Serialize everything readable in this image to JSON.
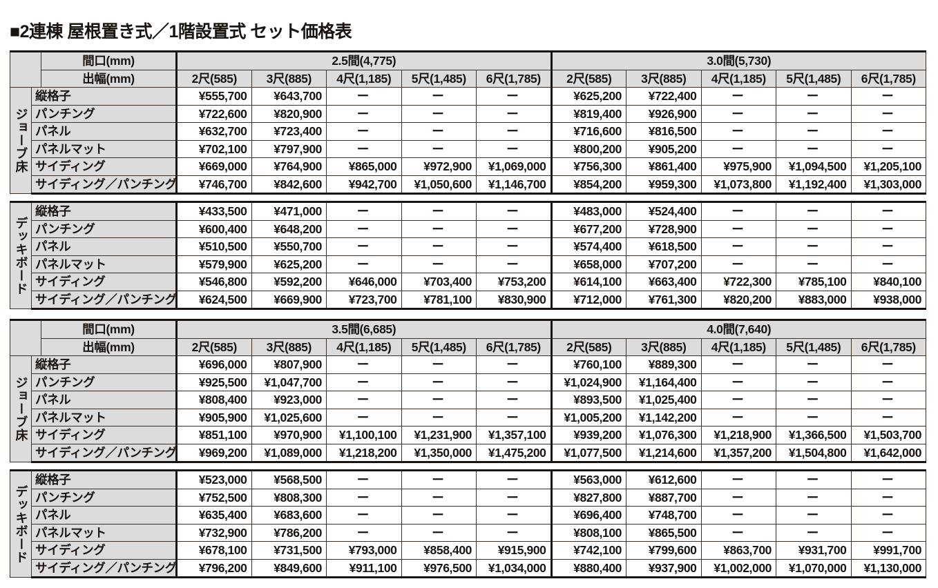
{
  "title": "■2連棟 屋根置き式／1階設置式 セット価格表",
  "header_labels": {
    "frontage": "間口(mm)",
    "projection": "出幅(mm)"
  },
  "projection_columns": [
    "2尺(585)",
    "3尺(885)",
    "4尺(1,185)",
    "5尺(1,485)",
    "6尺(1,785)"
  ],
  "row_labels": [
    "縦格子",
    "パンチング",
    "パネル",
    "パネルマット",
    "サイディング",
    "サイディング／パンチング"
  ],
  "tables": [
    {
      "frontages": [
        "2.5間(4,775)",
        "3.0間(5,730)"
      ],
      "groups": [
        {
          "name": "ジョーブ床",
          "rows": [
            [
              "¥555,700",
              "¥643,700",
              "ー",
              "ー",
              "ー",
              "¥625,200",
              "¥722,400",
              "ー",
              "ー",
              "ー"
            ],
            [
              "¥722,600",
              "¥820,900",
              "ー",
              "ー",
              "ー",
              "¥819,400",
              "¥926,900",
              "ー",
              "ー",
              "ー"
            ],
            [
              "¥632,700",
              "¥723,400",
              "ー",
              "ー",
              "ー",
              "¥716,600",
              "¥816,500",
              "ー",
              "ー",
              "ー"
            ],
            [
              "¥702,100",
              "¥797,900",
              "ー",
              "ー",
              "ー",
              "¥800,200",
              "¥905,200",
              "ー",
              "ー",
              "ー"
            ],
            [
              "¥669,000",
              "¥764,900",
              "¥865,000",
              "¥972,900",
              "¥1,069,000",
              "¥756,300",
              "¥861,400",
              "¥975,900",
              "¥1,094,500",
              "¥1,205,100"
            ],
            [
              "¥746,700",
              "¥842,600",
              "¥942,700",
              "¥1,050,600",
              "¥1,146,700",
              "¥854,200",
              "¥959,300",
              "¥1,073,800",
              "¥1,192,400",
              "¥1,303,000"
            ]
          ]
        },
        {
          "name": "デッキボード",
          "rows": [
            [
              "¥433,500",
              "¥471,000",
              "ー",
              "ー",
              "ー",
              "¥483,000",
              "¥524,400",
              "ー",
              "ー",
              "ー"
            ],
            [
              "¥600,400",
              "¥648,200",
              "ー",
              "ー",
              "ー",
              "¥677,200",
              "¥728,900",
              "ー",
              "ー",
              "ー"
            ],
            [
              "¥510,500",
              "¥550,700",
              "ー",
              "ー",
              "ー",
              "¥574,400",
              "¥618,500",
              "ー",
              "ー",
              "ー"
            ],
            [
              "¥579,900",
              "¥625,200",
              "ー",
              "ー",
              "ー",
              "¥658,000",
              "¥707,200",
              "ー",
              "ー",
              "ー"
            ],
            [
              "¥546,800",
              "¥592,200",
              "¥646,000",
              "¥703,400",
              "¥753,200",
              "¥614,100",
              "¥663,400",
              "¥722,300",
              "¥785,100",
              "¥840,100"
            ],
            [
              "¥624,500",
              "¥669,900",
              "¥723,700",
              "¥781,100",
              "¥830,900",
              "¥712,000",
              "¥761,300",
              "¥820,200",
              "¥883,000",
              "¥938,000"
            ]
          ]
        }
      ]
    },
    {
      "frontages": [
        "3.5間(6,685)",
        "4.0間(7,640)"
      ],
      "groups": [
        {
          "name": "ジョーブ床",
          "rows": [
            [
              "¥696,000",
              "¥807,900",
              "ー",
              "ー",
              "ー",
              "¥760,100",
              "¥889,300",
              "ー",
              "ー",
              "ー"
            ],
            [
              "¥925,500",
              "¥1,047,700",
              "ー",
              "ー",
              "ー",
              "¥1,024,900",
              "¥1,164,400",
              "ー",
              "ー",
              "ー"
            ],
            [
              "¥808,400",
              "¥923,000",
              "ー",
              "ー",
              "ー",
              "¥893,500",
              "¥1,025,400",
              "ー",
              "ー",
              "ー"
            ],
            [
              "¥905,900",
              "¥1,025,600",
              "ー",
              "ー",
              "ー",
              "¥1,005,200",
              "¥1,142,200",
              "ー",
              "ー",
              "ー"
            ],
            [
              "¥851,100",
              "¥970,900",
              "¥1,100,100",
              "¥1,231,900",
              "¥1,357,100",
              "¥939,200",
              "¥1,076,300",
              "¥1,218,900",
              "¥1,366,500",
              "¥1,503,700"
            ],
            [
              "¥969,200",
              "¥1,089,000",
              "¥1,218,200",
              "¥1,350,000",
              "¥1,475,200",
              "¥1,077,500",
              "¥1,214,600",
              "¥1,357,200",
              "¥1,504,800",
              "¥1,642,000"
            ]
          ]
        },
        {
          "name": "デッキボード",
          "rows": [
            [
              "¥523,000",
              "¥568,500",
              "ー",
              "ー",
              "ー",
              "¥563,000",
              "¥612,600",
              "ー",
              "ー",
              "ー"
            ],
            [
              "¥752,500",
              "¥808,300",
              "ー",
              "ー",
              "ー",
              "¥827,800",
              "¥887,700",
              "ー",
              "ー",
              "ー"
            ],
            [
              "¥635,400",
              "¥683,600",
              "ー",
              "ー",
              "ー",
              "¥696,400",
              "¥748,700",
              "ー",
              "ー",
              "ー"
            ],
            [
              "¥732,900",
              "¥786,200",
              "ー",
              "ー",
              "ー",
              "¥808,100",
              "¥865,500",
              "ー",
              "ー",
              "ー"
            ],
            [
              "¥678,100",
              "¥731,500",
              "¥793,000",
              "¥858,400",
              "¥915,900",
              "¥742,100",
              "¥799,600",
              "¥863,700",
              "¥931,700",
              "¥991,700"
            ],
            [
              "¥796,200",
              "¥849,600",
              "¥911,100",
              "¥976,500",
              "¥1,034,000",
              "¥880,400",
              "¥937,900",
              "¥1,002,000",
              "¥1,070,000",
              "¥1,130,000"
            ]
          ]
        }
      ]
    }
  ]
}
